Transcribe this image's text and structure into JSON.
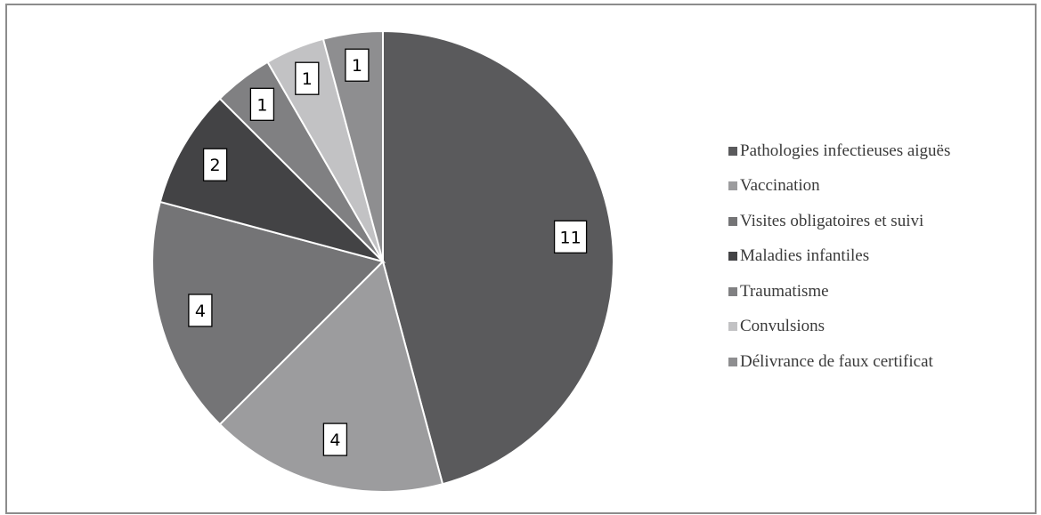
{
  "chart_data": {
    "type": "pie",
    "categories": [
      "Pathologies infectieuses aiguës",
      "Vaccination",
      "Visites obligatoires et suivi",
      "Maladies infantiles",
      "Traumatisme",
      "Convulsions",
      "Délivrance de faux certificat"
    ],
    "values": [
      11,
      4,
      4,
      2,
      1,
      1,
      1
    ],
    "data_labels": [
      "11",
      "4",
      "4",
      "2",
      "1",
      "1",
      "1"
    ],
    "colors": [
      "#5a5a5c",
      "#9c9c9e",
      "#747476",
      "#434345",
      "#808082",
      "#c2c2c4",
      "#8e8e90"
    ],
    "start": "12 o'clock",
    "direction": "clockwise",
    "legend_position": "right"
  }
}
